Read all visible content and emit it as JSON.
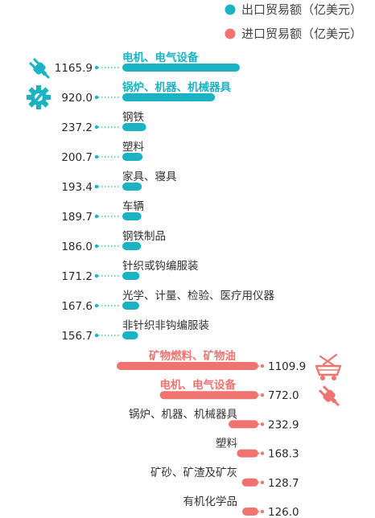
{
  "legend": [
    {
      "label": "出口贸易额（亿美元）",
      "color": "#1bb3c4"
    },
    {
      "label": "进口贸易额（亿美元）",
      "color": "#ef7470"
    }
  ],
  "chart_data": {
    "type": "bar",
    "orientation": "horizontal",
    "legend_position": "top-right",
    "grid": false,
    "series": [
      {
        "name": "出口贸易额（亿美元）",
        "color": "#1bb3c4",
        "categories": [
          "电机、电气设备",
          "锅炉、机器、机械器具",
          "钢铁",
          "塑料",
          "家具、寝具",
          "车辆",
          "钢铁制品",
          "针织或钩编服装",
          "光学、计量、检验、医疗用仪器",
          "非针织非钩编服装"
        ],
        "values": [
          1165.9,
          920.0,
          237.2,
          200.7,
          193.4,
          189.7,
          186.0,
          171.2,
          167.6,
          156.7
        ],
        "value_labels": [
          "1165.9",
          "920.0",
          "237.2",
          "200.7",
          "193.4",
          "189.7",
          "186.0",
          "171.2",
          "167.6",
          "156.7"
        ],
        "highlight": [
          true,
          true,
          false,
          false,
          false,
          false,
          false,
          false,
          false,
          false
        ],
        "icons": [
          "plug-icon",
          "gear-icon",
          null,
          null,
          null,
          null,
          null,
          null,
          null,
          null
        ]
      },
      {
        "name": "进口贸易额（亿美元）",
        "color": "#ef7470",
        "categories": [
          "矿物燃料、矿物油",
          "电机、电气设备",
          "锅炉、机器、机械器具",
          "塑料",
          "矿砂、矿渣及矿灰",
          "有机化学品"
        ],
        "values": [
          1109.9,
          772.0,
          232.9,
          168.3,
          128.7,
          126.0
        ],
        "value_labels": [
          "1109.9",
          "772.0",
          "232.9",
          "168.3",
          "128.7",
          "126.0"
        ],
        "highlight": [
          true,
          true,
          false,
          false,
          false,
          false
        ],
        "icons": [
          "mining-cart-icon",
          "plug-icon",
          null,
          null,
          null,
          null
        ]
      }
    ]
  }
}
